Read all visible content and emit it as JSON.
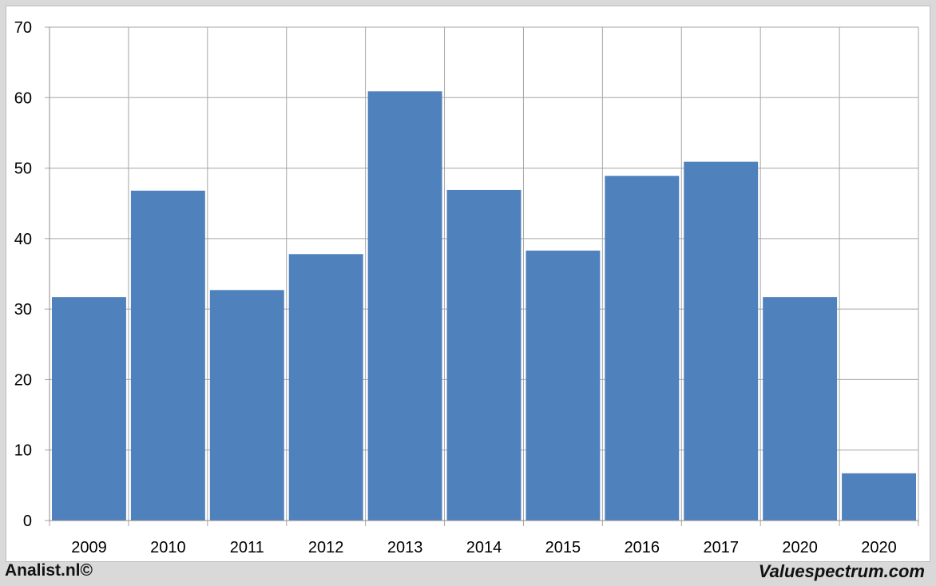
{
  "footer": {
    "left_label": "Analist.nl©",
    "right_label": "Valuespectrum.com"
  },
  "chart_data": {
    "type": "bar",
    "categories": [
      "2009",
      "2010",
      "2011",
      "2012",
      "2013",
      "2014",
      "2015",
      "2016",
      "2017",
      "2020",
      "2020"
    ],
    "values": [
      31.7,
      46.8,
      32.7,
      37.8,
      60.9,
      46.9,
      38.3,
      48.9,
      50.9,
      31.7,
      6.7
    ],
    "ylim": [
      0,
      70
    ],
    "yticks": [
      0,
      10,
      20,
      30,
      40,
      50,
      60,
      70
    ],
    "title": "",
    "xlabel": "",
    "ylabel": "",
    "grid": true,
    "bar_color": "#4f81bd",
    "grid_color": "#a6a6a6"
  }
}
